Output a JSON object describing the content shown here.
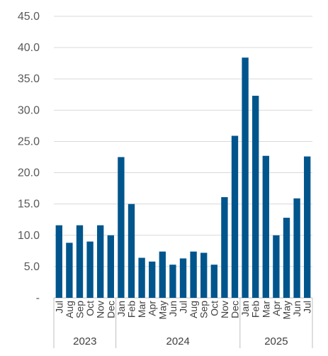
{
  "chart_data": {
    "type": "bar",
    "title": "",
    "xlabel": "",
    "ylabel": "",
    "ylim": [
      0,
      45
    ],
    "ytick_step": 5,
    "ytick_labels": [
      "-",
      "5.0",
      "10.0",
      "15.0",
      "20.0",
      "25.0",
      "30.0",
      "35.0",
      "40.0",
      "45.0"
    ],
    "grid": true,
    "legend": "none",
    "bar_color": "#00558C",
    "categories": [
      "Jul",
      "Aug",
      "Sep",
      "Oct",
      "Nov",
      "Dec",
      "Jan",
      "Feb",
      "Mar",
      "Apr",
      "May",
      "Jun",
      "Jul",
      "Aug",
      "Sep",
      "Oct",
      "Nov",
      "Dec",
      "Jan",
      "Feb",
      "Mar",
      "Apr",
      "May",
      "Jun",
      "Jul"
    ],
    "values": [
      11.6,
      8.8,
      11.6,
      9.0,
      11.6,
      10.0,
      22.5,
      15.0,
      6.4,
      5.8,
      7.4,
      5.3,
      6.3,
      7.4,
      7.2,
      5.3,
      16.1,
      25.9,
      38.4,
      32.3,
      22.7,
      10.0,
      12.8,
      15.9,
      22.6
    ],
    "groups": [
      {
        "label": "2023",
        "start": 0,
        "end": 5
      },
      {
        "label": "2024",
        "start": 6,
        "end": 17
      },
      {
        "label": "2025",
        "start": 18,
        "end": 24
      }
    ]
  }
}
